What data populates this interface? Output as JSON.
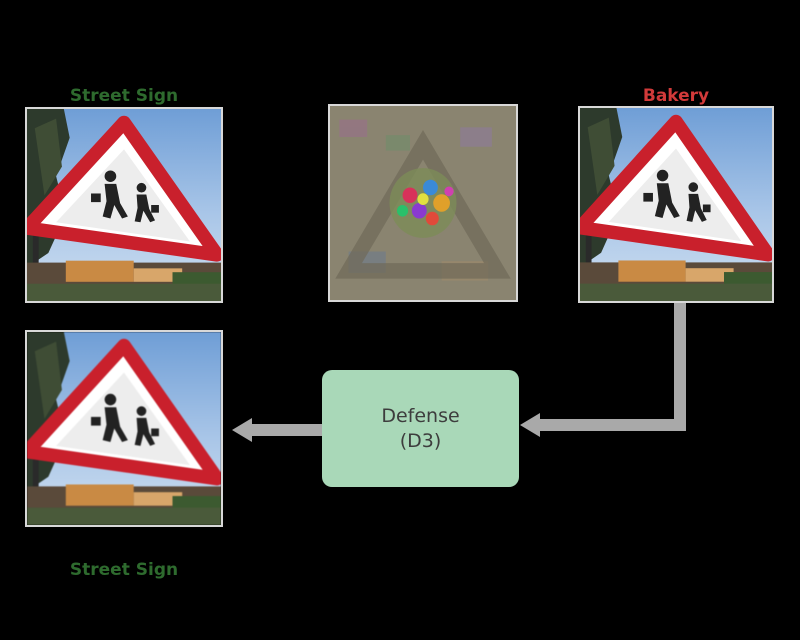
{
  "panels": {
    "original": {
      "caption": "",
      "prediction": "Street Sign",
      "prediction_color": "#2e6b2e"
    },
    "perturbation": {
      "caption": ""
    },
    "adversarial": {
      "caption": "",
      "prediction": "Bakery",
      "prediction_color": "#d23a3a"
    },
    "defended": {
      "caption": "",
      "prediction": "Street Sign",
      "prediction_color": "#2e6b2e"
    }
  },
  "operators": {
    "plus": "",
    "equals": ""
  },
  "defense": {
    "line1": "Defense",
    "line2": "(D3)",
    "fill_color": "#a9d8b8"
  },
  "colors": {
    "background": "#000000",
    "arrow": "#a9a9a9"
  }
}
